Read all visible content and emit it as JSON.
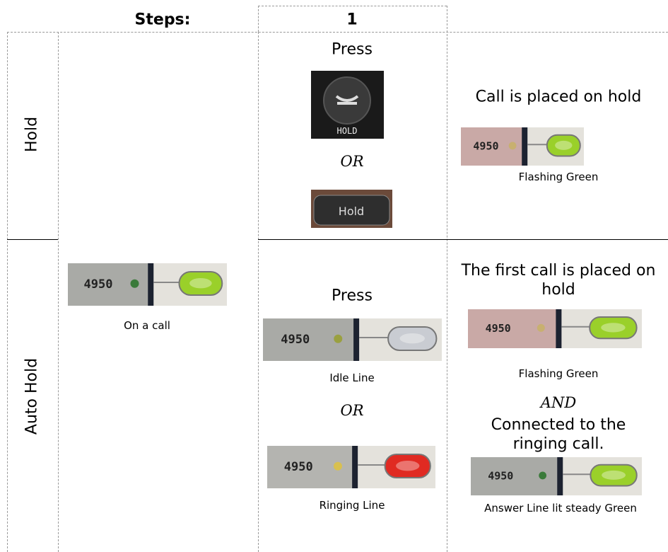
{
  "header": {
    "steps_label": "Steps:",
    "step_number": "1"
  },
  "rows": [
    {
      "label": "Hold",
      "action": {
        "press": "Press",
        "hold_key_label": "HOLD",
        "or": "OR",
        "softkey_label": "Hold"
      },
      "result": {
        "text": "Call is placed on hold",
        "line_number": "4950",
        "caption": "Flashing Green"
      }
    },
    {
      "label": "Auto Hold",
      "start": {
        "line_number": "4950",
        "caption": "On a call"
      },
      "action": {
        "press": "Press",
        "idle_line_number": "4950",
        "idle_caption": "Idle Line",
        "or": "OR",
        "ringing_line_number": "4950",
        "ringing_caption": "Ringing Line"
      },
      "result": {
        "text": "The first call is placed on hold",
        "line_number": "4950",
        "caption": "Flashing Green",
        "and": "AND",
        "text2": "Connected to the ringing call.",
        "answer_line_number": "4950",
        "answer_caption": "Answer Line lit steady Green"
      }
    }
  ]
}
